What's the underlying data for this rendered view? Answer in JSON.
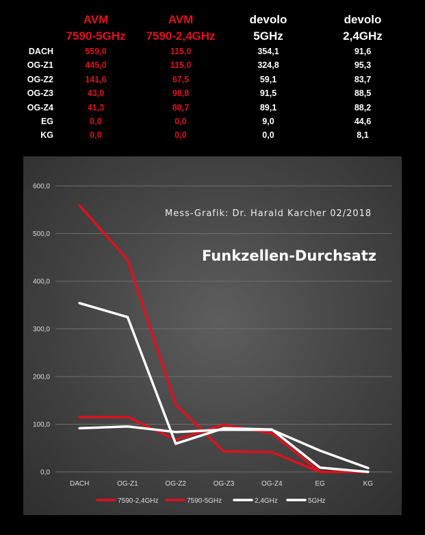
{
  "table": {
    "headers": [
      {
        "line1": "AVM",
        "line2": "7590-5GHz",
        "color": "#e0101e"
      },
      {
        "line1": "AVM",
        "line2": "7590-2,4GHz",
        "color": "#e0101e"
      },
      {
        "line1": "devolo",
        "line2": "5GHz",
        "color": "#ffffff"
      },
      {
        "line1": "devolo",
        "line2": "2,4GHz",
        "color": "#ffffff"
      }
    ],
    "rows": [
      {
        "label": "DACH",
        "values": [
          "559,0",
          "115,0",
          "354,1",
          "91,6"
        ]
      },
      {
        "label": "OG-Z1",
        "values": [
          "445,0",
          "115,0",
          "324,8",
          "95,3"
        ]
      },
      {
        "label": "OG-Z2",
        "values": [
          "141,6",
          "67,5",
          "59,1",
          "83,7"
        ]
      },
      {
        "label": "OG-Z3",
        "values": [
          "43,0",
          "98,8",
          "91,5",
          "88,5"
        ]
      },
      {
        "label": "OG-Z4",
        "values": [
          "41,3",
          "80,7",
          "89,1",
          "88,2"
        ]
      },
      {
        "label": "EG",
        "values": [
          "0,0",
          "0,0",
          "9,0",
          "44,6"
        ]
      },
      {
        "label": "KG",
        "values": [
          "0,0",
          "0,0",
          "0,0",
          "8,1"
        ]
      }
    ]
  },
  "chart_data": {
    "type": "line",
    "title": "Funkzellen-Durchsatz",
    "subtitle": "Mess-Grafik: Dr. Harald Karcher 02/2018",
    "categories": [
      "DACH",
      "OG-Z1",
      "OG-Z2",
      "OG-Z3",
      "OG-Z4",
      "EG",
      "KG"
    ],
    "y_ticks": [
      "0,0",
      "100,0",
      "200,0",
      "300,0",
      "400,0",
      "500,0",
      "600,0"
    ],
    "ylim": [
      0,
      600
    ],
    "grid": true,
    "legend_position": "bottom",
    "series": [
      {
        "name": "7590-2,4GHz",
        "color": "#e0101e",
        "values": [
          115.0,
          115.0,
          67.5,
          98.8,
          80.7,
          0.0,
          0.0
        ]
      },
      {
        "name": "7590-5GHz",
        "color": "#e0101e",
        "values": [
          559.0,
          445.0,
          141.6,
          43.0,
          41.3,
          0.0,
          0.0
        ]
      },
      {
        "name": "2,4GHz",
        "color": "#ffffff",
        "values": [
          91.6,
          95.3,
          83.7,
          88.5,
          88.2,
          44.6,
          8.1
        ]
      },
      {
        "name": "5GHz",
        "color": "#ffffff",
        "values": [
          354.1,
          324.8,
          59.1,
          91.5,
          89.1,
          9.0,
          0.0
        ]
      }
    ]
  }
}
